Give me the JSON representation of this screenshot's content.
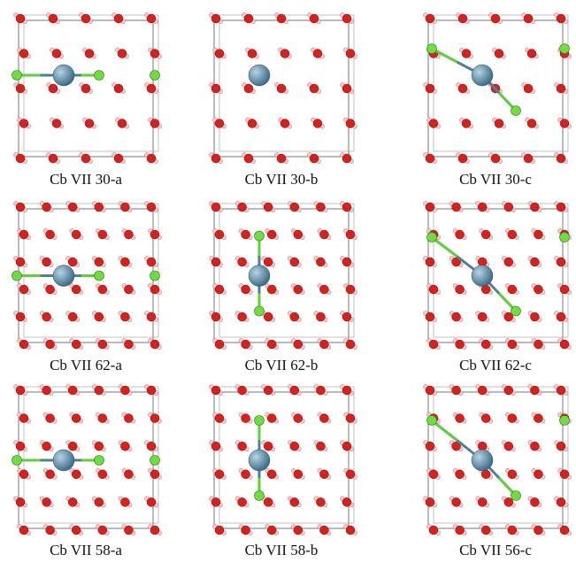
{
  "panels": [
    {
      "label": "Cb VII 30-a"
    },
    {
      "label": "Cb VII 30-b"
    },
    {
      "label": "Cb VII 30-c"
    },
    {
      "label": "Cb VII 62-a"
    },
    {
      "label": "Cb VII 62-b"
    },
    {
      "label": "Cb VII 62-c"
    },
    {
      "label": "Cb VII 58-a"
    },
    {
      "label": "Cb VII 58-b"
    },
    {
      "label": "Cb VII 56-c"
    }
  ]
}
